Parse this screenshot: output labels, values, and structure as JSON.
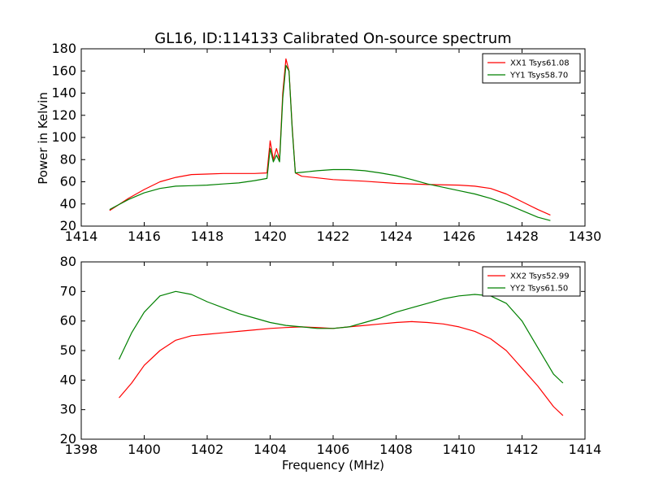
{
  "figure": {
    "title": "GL16, ID:114133 Calibrated On-source spectrum",
    "xlabel": "Frequency (MHz)",
    "ylabel": "Power in Kelvin"
  },
  "chart_data": [
    {
      "type": "line",
      "xlim": [
        1414,
        1430
      ],
      "ylim": [
        20,
        180
      ],
      "xticks": [
        1414,
        1416,
        1418,
        1420,
        1422,
        1424,
        1426,
        1428,
        1430
      ],
      "yticks": [
        20,
        40,
        60,
        80,
        100,
        120,
        140,
        160,
        180
      ],
      "ylabel": "Power in Kelvin",
      "legend_position": "top-right",
      "grid": false,
      "series": [
        {
          "name": "XX1 Tsys61.08",
          "color": "#ff0000",
          "x": [
            1414.9,
            1415.5,
            1416.0,
            1416.5,
            1417.0,
            1417.5,
            1418.0,
            1418.5,
            1419.0,
            1419.5,
            1419.9,
            1420.0,
            1420.1,
            1420.2,
            1420.3,
            1420.4,
            1420.5,
            1420.6,
            1420.7,
            1420.8,
            1421.0,
            1421.5,
            1422.0,
            1423.0,
            1424.0,
            1425.0,
            1426.0,
            1426.5,
            1427.0,
            1427.5,
            1428.0,
            1428.5,
            1428.9
          ],
          "y": [
            34,
            45,
            53,
            60,
            64,
            66.5,
            67,
            67.5,
            67.5,
            67.5,
            68,
            97,
            80,
            90,
            80,
            140,
            171,
            160,
            110,
            68,
            65,
            63.5,
            62,
            60.5,
            58.5,
            57.5,
            57,
            56,
            54,
            49,
            42,
            35,
            30
          ]
        },
        {
          "name": "YY1 Tsys58.70",
          "color": "#008000",
          "x": [
            1414.9,
            1415.5,
            1416.0,
            1416.5,
            1417.0,
            1417.5,
            1418.0,
            1418.5,
            1419.0,
            1419.5,
            1419.9,
            1420.0,
            1420.1,
            1420.2,
            1420.3,
            1420.4,
            1420.5,
            1420.6,
            1420.7,
            1420.8,
            1421.0,
            1421.5,
            1422.0,
            1422.5,
            1423.0,
            1423.5,
            1424.0,
            1424.5,
            1425.0,
            1425.5,
            1426.0,
            1426.5,
            1427.0,
            1427.5,
            1428.0,
            1428.5,
            1428.9
          ],
          "y": [
            35,
            44,
            50,
            54,
            56,
            56.5,
            57,
            58,
            59,
            61,
            63,
            90,
            78,
            84,
            78,
            135,
            165,
            160,
            108,
            68,
            68.5,
            70,
            71,
            71,
            70,
            68,
            65.5,
            62,
            58,
            55,
            52,
            49,
            45,
            40,
            34,
            28,
            25
          ]
        }
      ]
    },
    {
      "type": "line",
      "xlim": [
        1398,
        1414
      ],
      "ylim": [
        20,
        80
      ],
      "xticks": [
        1398,
        1400,
        1402,
        1404,
        1406,
        1408,
        1410,
        1412,
        1414
      ],
      "yticks": [
        20,
        30,
        40,
        50,
        60,
        70,
        80
      ],
      "xlabel": "Frequency (MHz)",
      "legend_position": "top-right",
      "grid": false,
      "series": [
        {
          "name": "XX2 Tsys52.99",
          "color": "#ff0000",
          "x": [
            1399.2,
            1399.6,
            1400.0,
            1400.5,
            1401.0,
            1401.5,
            1402.0,
            1402.5,
            1403.0,
            1403.5,
            1404.0,
            1404.5,
            1405.0,
            1405.5,
            1406.0,
            1406.5,
            1407.0,
            1407.5,
            1408.0,
            1408.5,
            1409.0,
            1409.5,
            1410.0,
            1410.5,
            1411.0,
            1411.5,
            1412.0,
            1412.5,
            1413.0,
            1413.3
          ],
          "y": [
            34,
            39,
            45,
            50,
            53.5,
            55,
            55.5,
            56,
            56.5,
            57,
            57.5,
            57.8,
            58,
            57.8,
            57.5,
            58,
            58.5,
            59,
            59.5,
            59.8,
            59.5,
            59,
            58,
            56.5,
            54,
            50,
            44,
            38,
            31,
            28
          ]
        },
        {
          "name": "YY2 Tsys61.50",
          "color": "#008000",
          "x": [
            1399.2,
            1399.6,
            1400.0,
            1400.5,
            1401.0,
            1401.5,
            1402.0,
            1402.5,
            1403.0,
            1403.5,
            1404.0,
            1404.5,
            1405.0,
            1405.5,
            1406.0,
            1406.5,
            1407.0,
            1407.5,
            1408.0,
            1408.5,
            1409.0,
            1409.5,
            1410.0,
            1410.5,
            1411.0,
            1411.5,
            1412.0,
            1412.5,
            1413.0,
            1413.3
          ],
          "y": [
            47,
            56,
            63,
            68.5,
            70,
            69,
            66.5,
            64.5,
            62.5,
            61,
            59.5,
            58.5,
            58,
            57.5,
            57.5,
            58,
            59.5,
            61,
            63,
            64.5,
            66,
            67.5,
            68.5,
            69,
            68.5,
            66,
            60,
            51,
            42,
            39
          ]
        }
      ]
    }
  ]
}
